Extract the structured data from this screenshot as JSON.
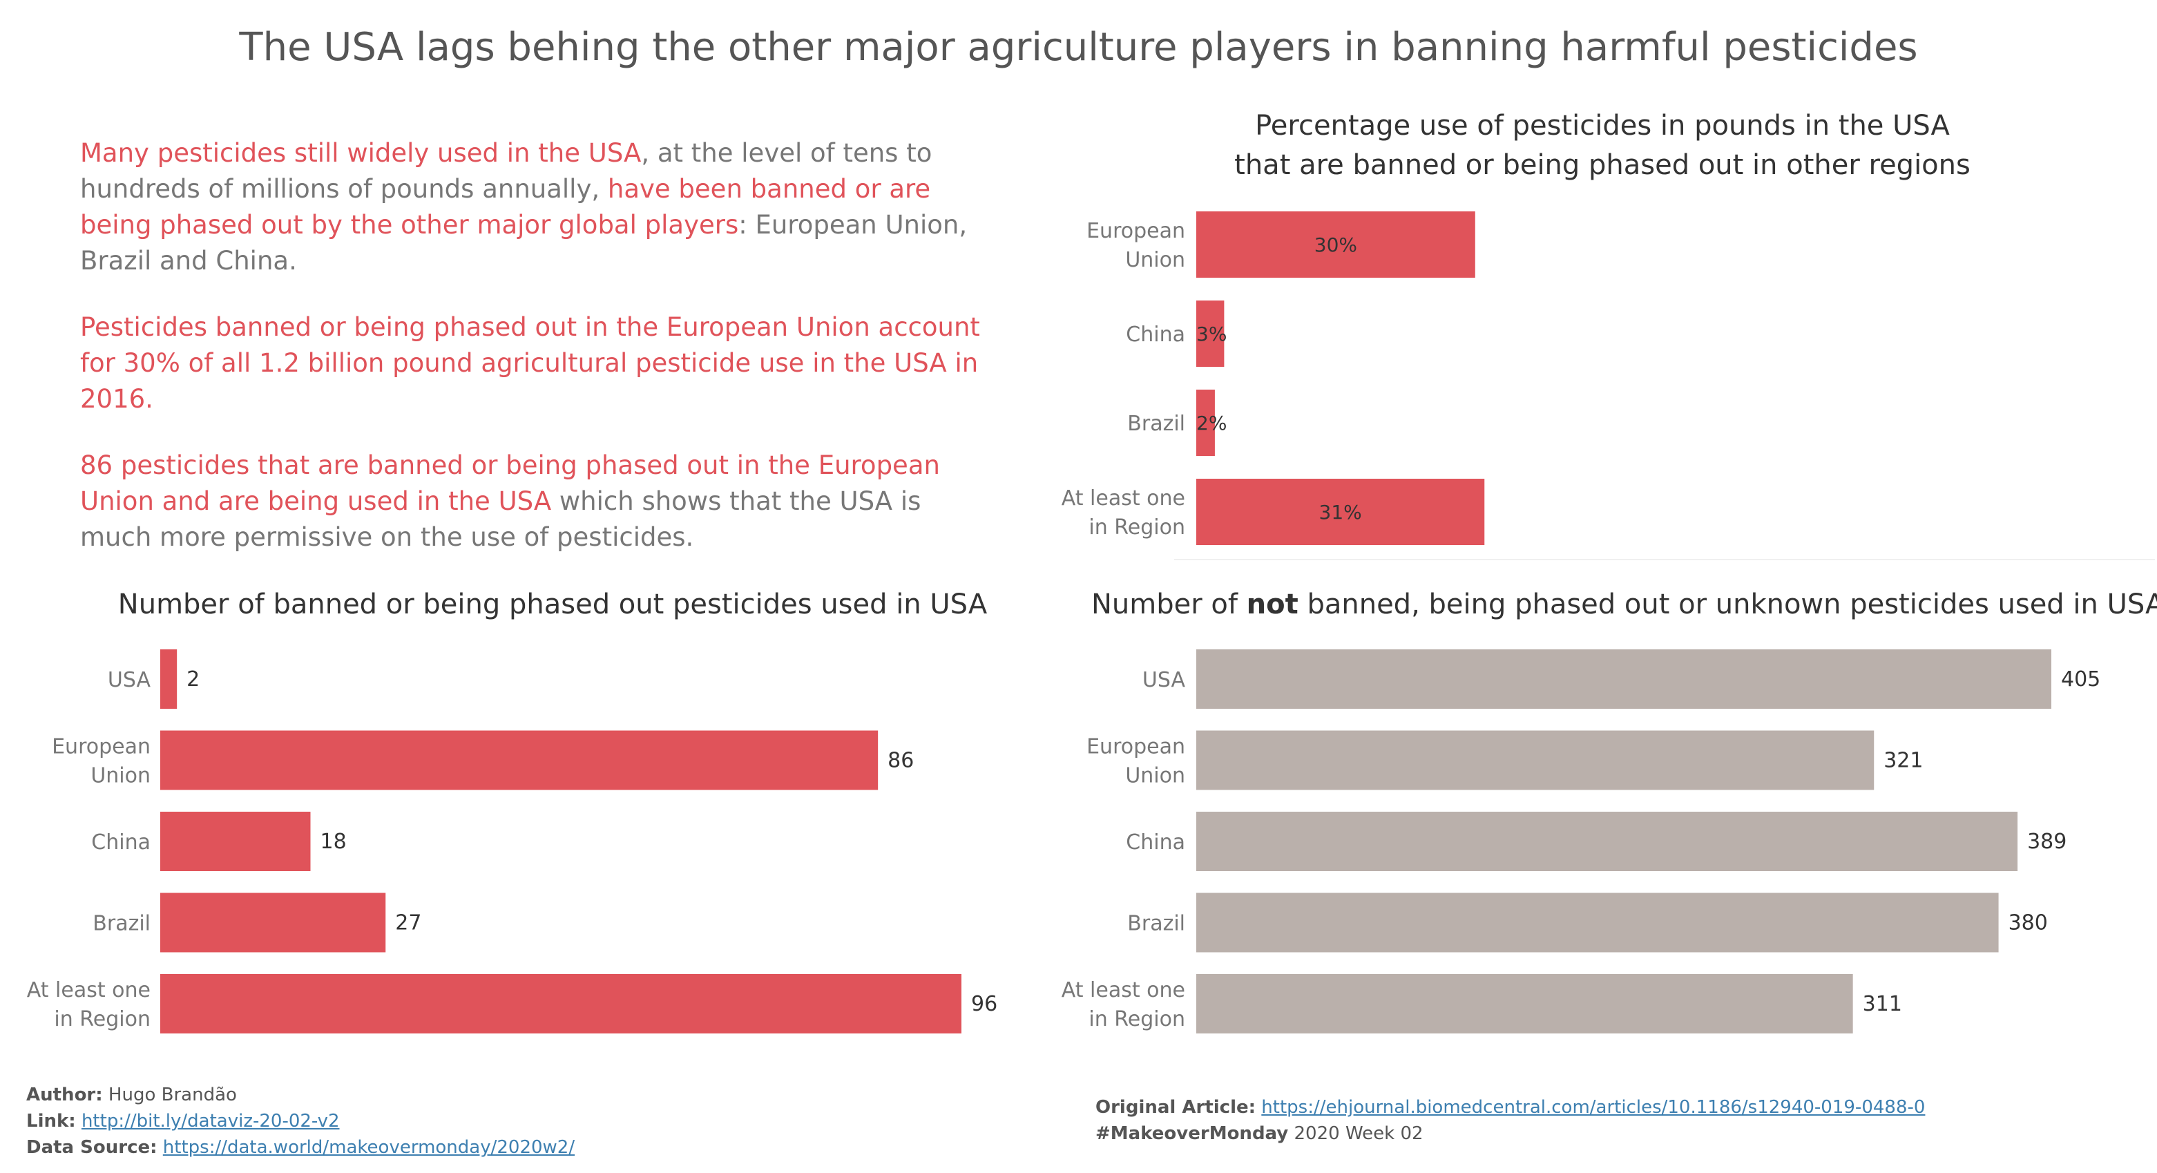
{
  "title": "The USA lags behing the other major agriculture players in banning harmful pesticides",
  "narrative": {
    "p1": [
      {
        "text": "Many pesticides still widely used in the USA",
        "hl": true
      },
      {
        "text": ", at the level of tens to hundreds of millions of pounds annually, ",
        "hl": false
      },
      {
        "text": "have been banned or are being phased out by the other major global players",
        "hl": true
      },
      {
        "text": ": European Union, Brazil and China.",
        "hl": false
      }
    ],
    "p2": [
      {
        "text": "Pesticides banned or being phased out in the European Union account for 30% of all 1.2 billion pound agricultural pesticide use in the USA in 2016.",
        "hl": true
      }
    ],
    "p3": [
      {
        "text": "86 pesticides that are banned or being phased out in the European Union and are being used in the USA",
        "hl": true
      },
      {
        "text": " which shows that the USA is much more permissive on the use of pesticides.",
        "hl": false
      }
    ]
  },
  "colors": {
    "red": "#e0535a",
    "grey": "#bab0ab"
  },
  "chart_data": [
    {
      "id": "pct",
      "type": "bar",
      "orientation": "horizontal",
      "title_lines": [
        "Percentage use of pesticides in pounds in the USA",
        "that are banned or being phased out in other regions"
      ],
      "categories": [
        [
          "European",
          "Union"
        ],
        [
          "China"
        ],
        [
          "Brazil"
        ],
        [
          "At least one",
          "in Region"
        ]
      ],
      "values": [
        30,
        3,
        2,
        31
      ],
      "labels": [
        "30%",
        "3%",
        "2%",
        "31%"
      ],
      "xlim": [
        0,
        100
      ],
      "color": "#e0535a"
    },
    {
      "id": "banned",
      "type": "bar",
      "orientation": "horizontal",
      "title": "Number of banned or being phased out pesticides used in USA",
      "categories": [
        [
          "USA"
        ],
        [
          "European",
          "Union"
        ],
        [
          "China"
        ],
        [
          "Brazil"
        ],
        [
          "At least one",
          "in Region"
        ]
      ],
      "values": [
        2,
        86,
        18,
        27,
        96
      ],
      "labels": [
        "2",
        "86",
        "18",
        "27",
        "96"
      ],
      "xlim": [
        0,
        96
      ],
      "color": "#e0535a"
    },
    {
      "id": "notbanned",
      "type": "bar",
      "orientation": "horizontal",
      "title_parts": [
        "Number of ",
        "not",
        " banned, being phased out or unknown pesticides used in USA"
      ],
      "categories": [
        [
          "USA"
        ],
        [
          "European",
          "Union"
        ],
        [
          "China"
        ],
        [
          "Brazil"
        ],
        [
          "At least one",
          "in Region"
        ]
      ],
      "values": [
        405,
        321,
        389,
        380,
        311
      ],
      "labels": [
        "405",
        "321",
        "389",
        "380",
        "311"
      ],
      "xlim": [
        0,
        405
      ],
      "color": "#bab0ab"
    }
  ],
  "footer": {
    "author_label": "Author:",
    "author": "Hugo Brandão",
    "link_label": "Link:",
    "link": "http://bit.ly/dataviz-20-02-v2",
    "source_label": "Data Source:",
    "source": "https://data.world/makeovermonday/2020w2/",
    "article_label": "Original Article:",
    "article": "https://ehjournal.biomedcentral.com/articles/10.1186/s12940-019-0488-0",
    "tag": "#MakeoverMonday",
    "week": "2020 Week 02"
  }
}
